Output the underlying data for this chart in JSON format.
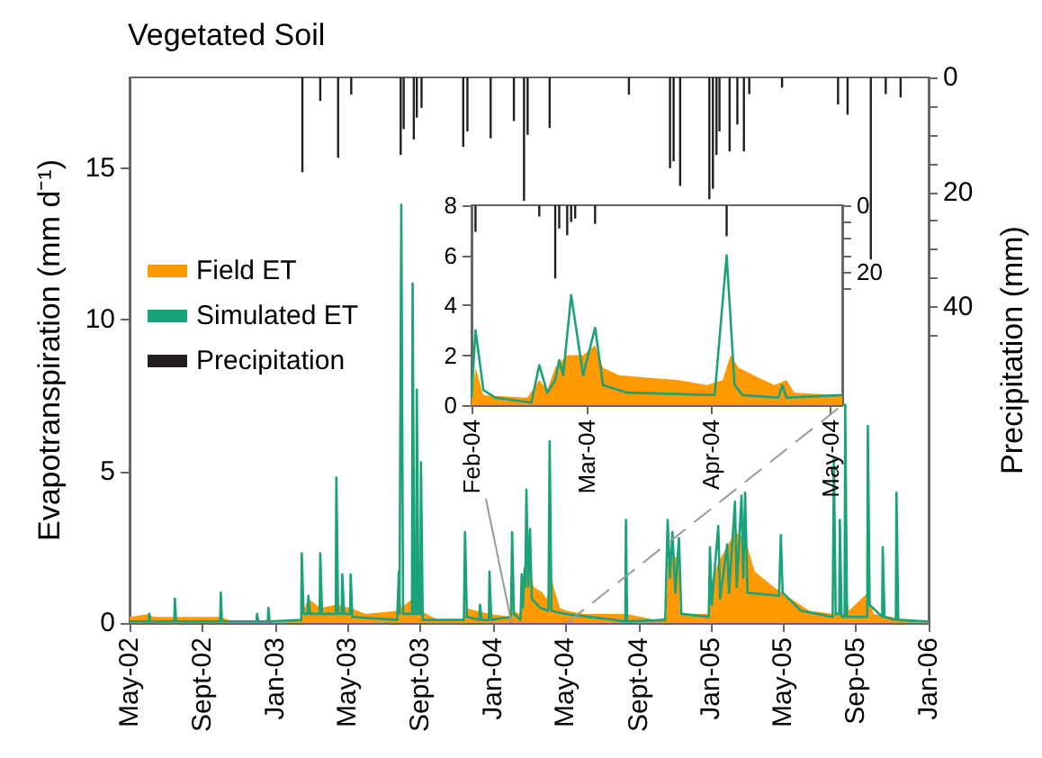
{
  "chart_data": [
    {
      "type": "line",
      "title": "Vegetated Soil",
      "ylabel": "Evapotranspiration (mm d⁻¹)",
      "y2label": "Precipitation (mm)",
      "legend": "top left",
      "xlim": [
        "2002-05-01",
        "2006-01-01"
      ],
      "xticks": [
        {
          "value": "2002-05-01",
          "label": "May-02"
        },
        {
          "value": "2002-09-01",
          "label": "Sept-02"
        },
        {
          "value": "2003-01-01",
          "label": "Jan-03"
        },
        {
          "value": "2003-05-01",
          "label": "May-03"
        },
        {
          "value": "2003-09-01",
          "label": "Sept-03"
        },
        {
          "value": "2004-01-01",
          "label": "Jan-04"
        },
        {
          "value": "2004-05-01",
          "label": "May-04"
        },
        {
          "value": "2004-09-01",
          "label": "Sept-04"
        },
        {
          "value": "2005-01-01",
          "label": "Jan-05"
        },
        {
          "value": "2005-05-01",
          "label": "May-05"
        },
        {
          "value": "2005-09-01",
          "label": "Sep-05"
        },
        {
          "value": "2006-01-01",
          "label": "Jan-06"
        }
      ],
      "ylim": [
        0,
        18
      ],
      "yticks": [
        0,
        5,
        10,
        15
      ],
      "y2lim": [
        95,
        0
      ],
      "y2ticks": [
        0,
        {
          "value": 5,
          "label": null
        },
        {
          "value": 10,
          "label": null
        },
        {
          "value": 15,
          "label": null
        },
        20,
        {
          "value": 25,
          "label": null
        },
        {
          "value": 30,
          "label": null
        },
        {
          "value": 35,
          "label": null
        },
        40,
        {
          "value": 45,
          "label": null
        }
      ],
      "series": [
        {
          "name": "Field ET",
          "type": "area",
          "color": "#ff9900",
          "x": [
            "2002-05-01",
            "2002-06-03",
            "2002-06-10",
            "2002-09-30",
            "2002-10-15",
            "2002-11-30",
            "2003-02-13",
            "2003-02-14",
            "2003-02-25",
            "2003-03-17",
            "2003-04-13",
            "2003-05-07",
            "2003-06-01",
            "2003-07-25",
            "2003-07-27",
            "2003-07-31",
            "2003-08-19",
            "2003-09-02",
            "2003-10-01",
            "2003-11-14",
            "2003-11-15",
            "2003-12-26",
            "2004-02-01",
            "2004-02-02",
            "2004-02-04",
            "2004-02-15",
            "2004-02-18",
            "2004-02-20",
            "2004-02-22",
            "2004-02-25",
            "2004-02-29",
            "2004-03-03",
            "2004-03-05",
            "2004-03-09",
            "2004-03-16",
            "2004-03-24",
            "2004-03-31",
            "2004-04-04",
            "2004-04-06",
            "2004-04-08",
            "2004-04-13",
            "2004-04-22",
            "2004-05-04",
            "2004-06-01",
            "2004-08-12",
            "2004-10-01",
            "2004-10-18",
            "2004-10-20",
            "2004-11-01",
            "2004-11-08",
            "2004-11-10",
            "2004-12-29",
            "2004-12-30",
            "2005-01-13",
            "2005-02-10",
            "2005-02-27",
            "2005-03-15",
            "2005-04-15",
            "2005-05-15",
            "2005-06-15",
            "2005-07-26",
            "2005-08-13",
            "2005-08-14",
            "2005-08-20",
            "2005-09-21",
            "2005-10-01",
            "2005-12-01",
            "2006-01-01"
          ],
          "values": [
            0.2,
            0.3,
            0.2,
            0.2,
            0.1,
            0.05,
            0.1,
            0.3,
            0.8,
            0.5,
            0.6,
            0.5,
            0.3,
            0.4,
            1.7,
            0.5,
            0.8,
            0.4,
            0.1,
            0.1,
            0.5,
            0.3,
            0.2,
            1.5,
            0.4,
            0.3,
            1.0,
            0.6,
            1.5,
            2.0,
            2.0,
            2.4,
            1.5,
            1.2,
            1.1,
            1.0,
            0.8,
            1.0,
            2.0,
            1.5,
            1.1,
            0.5,
            0.4,
            0.3,
            0.3,
            0.1,
            0.2,
            2.0,
            2.2,
            2.1,
            0.3,
            0.3,
            1.2,
            2.0,
            3.0,
            2.8,
            1.7,
            1.2,
            0.8,
            0.4,
            0.3,
            0.3,
            1.4,
            0.4,
            1.0,
            0.3,
            0.1,
            0.05
          ]
        },
        {
          "name": "Simulated ET",
          "color": "#1aa37a",
          "x": [
            "2002-05-01",
            "2002-06-02",
            "2002-06-03",
            "2002-06-05",
            "2002-07-15",
            "2002-07-16",
            "2002-07-18",
            "2002-09-30",
            "2002-10-01",
            "2002-10-03",
            "2002-11-30",
            "2002-12-01",
            "2002-12-03",
            "2002-12-19",
            "2002-12-20",
            "2002-12-22",
            "2003-02-13",
            "2003-02-14",
            "2003-02-17",
            "2003-02-24",
            "2003-02-25",
            "2003-02-28",
            "2003-03-16",
            "2003-03-17",
            "2003-03-20",
            "2003-04-12",
            "2003-04-13",
            "2003-04-16",
            "2003-04-22",
            "2003-04-23",
            "2003-04-26",
            "2003-05-06",
            "2003-05-07",
            "2003-05-10",
            "2003-07-24",
            "2003-07-27",
            "2003-07-28",
            "2003-07-31",
            "2003-08-03",
            "2003-08-18",
            "2003-08-19",
            "2003-08-22",
            "2003-08-25",
            "2003-08-26",
            "2003-08-29",
            "2003-09-01",
            "2003-09-02",
            "2003-09-05",
            "2003-11-13",
            "2003-11-15",
            "2003-11-18",
            "2003-12-09",
            "2003-12-10",
            "2003-12-13",
            "2003-12-25",
            "2003-12-26",
            "2003-12-29",
            "2004-01-31",
            "2004-02-02",
            "2004-02-05",
            "2004-02-16",
            "2004-02-18",
            "2004-02-20",
            "2004-02-23",
            "2004-02-24",
            "2004-02-26",
            "2004-02-29",
            "2004-03-03",
            "2004-03-06",
            "2004-03-20",
            "2004-04-03",
            "2004-04-05",
            "2004-04-08",
            "2004-05-01",
            "2004-08-10",
            "2004-08-11",
            "2004-08-13",
            "2004-10-16",
            "2004-10-20",
            "2004-10-24",
            "2004-10-28",
            "2004-11-02",
            "2004-11-08",
            "2004-11-12",
            "2004-12-28",
            "2004-12-30",
            "2005-01-02",
            "2005-01-13",
            "2005-01-16",
            "2005-01-28",
            "2005-01-31",
            "2005-02-10",
            "2005-02-13",
            "2005-02-21",
            "2005-02-24",
            "2005-02-27",
            "2005-03-03",
            "2005-04-25",
            "2005-04-28",
            "2005-05-01",
            "2005-06-01",
            "2005-07-24",
            "2005-07-26",
            "2005-07-29",
            "2005-08-04",
            "2005-08-05",
            "2005-08-08",
            "2005-08-13",
            "2005-08-14",
            "2005-08-17",
            "2005-09-20",
            "2005-09-21",
            "2005-09-24",
            "2005-10-15",
            "2005-10-16",
            "2005-10-19",
            "2005-11-07",
            "2005-11-08",
            "2005-11-11",
            "2006-01-01"
          ],
          "values": [
            0.05,
            0.05,
            0.3,
            0.05,
            0.05,
            0.8,
            0.05,
            0.05,
            1.0,
            0.05,
            0.05,
            0.3,
            0.05,
            0.05,
            0.5,
            0.05,
            0.1,
            2.3,
            0.3,
            0.3,
            0.9,
            0.3,
            0.3,
            2.3,
            0.3,
            0.3,
            4.8,
            0.3,
            0.3,
            1.6,
            0.3,
            0.3,
            1.6,
            0.2,
            0.1,
            1.7,
            0.3,
            13.8,
            0.3,
            0.3,
            11.2,
            0.3,
            0.3,
            7.7,
            0.3,
            0.3,
            5.3,
            0.1,
            0.1,
            3.0,
            0.2,
            0.1,
            0.6,
            0.1,
            0.1,
            1.7,
            0.1,
            0.2,
            3.0,
            0.3,
            0.1,
            1.6,
            0.5,
            1.8,
            1.2,
            4.4,
            1.2,
            3.1,
            0.8,
            0.5,
            0.4,
            6.0,
            0.4,
            0.3,
            0.05,
            3.4,
            0.05,
            0.1,
            3.4,
            1.5,
            3.0,
            1.0,
            2.8,
            0.3,
            0.2,
            2.5,
            0.6,
            3.2,
            0.8,
            2.6,
            1.0,
            4.0,
            1.2,
            4.2,
            1.5,
            4.3,
            1.0,
            0.9,
            2.9,
            1.0,
            0.4,
            0.2,
            5.4,
            0.3,
            0.3,
            3.4,
            0.2,
            0.2,
            7.2,
            0.2,
            0.2,
            6.5,
            0.6,
            0.2,
            2.5,
            0.2,
            0.1,
            4.3,
            0.1,
            0.05
          ]
        },
        {
          "name": "Precipitation",
          "type": "bar",
          "axis": "y2",
          "color": "#231f20",
          "x": [
            "2003-02-15",
            "2003-03-17",
            "2003-04-16",
            "2003-05-08",
            "2003-07-30",
            "2003-08-04",
            "2003-08-21",
            "2003-08-26",
            "2003-09-03",
            "2003-11-12",
            "2003-11-19",
            "2003-12-28",
            "2004-02-05",
            "2004-02-22",
            "2004-02-28",
            "2004-04-05",
            "2004-08-16",
            "2004-10-24",
            "2004-10-30",
            "2004-11-10",
            "2004-12-29",
            "2005-01-04",
            "2005-01-10",
            "2005-01-15",
            "2005-02-01",
            "2005-02-14",
            "2005-02-25",
            "2005-03-06",
            "2005-04-30",
            "2005-08-02",
            "2005-08-18",
            "2005-09-26",
            "2005-10-21",
            "2005-11-15"
          ],
          "values": [
            16.5,
            4.1,
            14.0,
            3.0,
            13.5,
            9.0,
            10.8,
            7.0,
            5.3,
            12.1,
            9.4,
            10.6,
            7.6,
            21.5,
            10.0,
            8.8,
            3.0,
            15.8,
            14.6,
            18.9,
            21.2,
            19.4,
            13.5,
            9.4,
            12.9,
            8.2,
            12.9,
            2.9,
            1.8,
            4.7,
            6.5,
            31.7,
            2.9,
            3.5
          ]
        }
      ]
    },
    {
      "type": "line",
      "xlim": [
        "2004-02-01",
        "2004-05-04"
      ],
      "xticks": [
        {
          "value": "2004-02-01",
          "label": "Feb-04"
        },
        {
          "value": "2004-03-01",
          "label": "Mar-04"
        },
        {
          "value": "2004-04-01",
          "label": "Apr-04"
        },
        {
          "value": "2004-05-01",
          "label": "May-04"
        }
      ],
      "ylim": [
        0,
        8
      ],
      "yticks": [
        0,
        2,
        4,
        6,
        8
      ],
      "y2lim": [
        60,
        0
      ],
      "y2ticks": [
        0,
        {
          "value": 5,
          "label": null
        },
        {
          "value": 10,
          "label": null
        },
        {
          "value": 15,
          "label": null
        },
        20,
        {
          "value": 25,
          "label": null
        }
      ],
      "series": [
        {
          "type": "area",
          "color": "#ff9900",
          "x": [
            "2004-02-01",
            "2004-02-02",
            "2004-02-04",
            "2004-02-15",
            "2004-02-18",
            "2004-02-20",
            "2004-02-22",
            "2004-02-25",
            "2004-02-29",
            "2004-03-03",
            "2004-03-05",
            "2004-03-09",
            "2004-03-16",
            "2004-03-24",
            "2004-03-31",
            "2004-04-04",
            "2004-04-06",
            "2004-04-08",
            "2004-04-13",
            "2004-04-17",
            "2004-04-20",
            "2004-04-22",
            "2004-05-04"
          ],
          "values": [
            0.3,
            1.5,
            0.4,
            0.3,
            1.0,
            0.6,
            1.5,
            2.0,
            2.0,
            2.4,
            1.5,
            1.2,
            1.1,
            1.0,
            0.8,
            1.0,
            2.0,
            1.5,
            1.1,
            0.8,
            1.0,
            0.5,
            0.4
          ]
        },
        {
          "color": "#1aa37a",
          "x": [
            "2004-02-01",
            "2004-02-02",
            "2004-02-04",
            "2004-02-07",
            "2004-02-16",
            "2004-02-18",
            "2004-02-20",
            "2004-02-22",
            "2004-02-23",
            "2004-02-24",
            "2004-02-26",
            "2004-02-29",
            "2004-03-03",
            "2004-03-05",
            "2004-03-11",
            "2004-04-02",
            "2004-04-05",
            "2004-04-07",
            "2004-04-09",
            "2004-04-18",
            "2004-04-19",
            "2004-04-20",
            "2004-05-04"
          ],
          "values": [
            0.3,
            3.0,
            0.6,
            0.3,
            0.1,
            1.6,
            0.5,
            1.0,
            1.8,
            1.2,
            4.4,
            1.2,
            3.1,
            0.8,
            0.5,
            0.4,
            6.0,
            0.8,
            0.4,
            0.3,
            0.8,
            0.3,
            0.4
          ]
        },
        {
          "type": "bar",
          "axis": "y2",
          "color": "#231f20",
          "x": [
            "2004-02-02",
            "2004-02-18",
            "2004-02-22",
            "2004-02-23",
            "2004-02-25",
            "2004-02-26",
            "2004-02-27",
            "2004-03-03",
            "2004-04-05"
          ],
          "values": [
            8,
            3.4,
            22,
            7,
            9,
            5,
            4,
            5.6,
            9.3
          ]
        }
      ]
    }
  ]
}
